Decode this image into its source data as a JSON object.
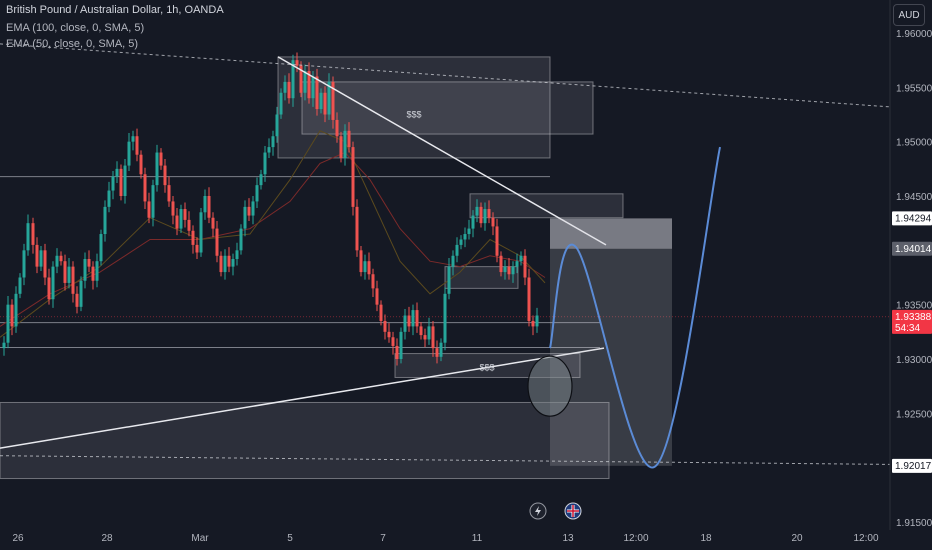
{
  "header": {
    "title": "British Pound / Australian Dollar, 1h, OANDA",
    "indicator_1": "EMA (100, close, 0, SMA, 5)",
    "indicator_2": "EMA (50, close, 0, SMA, 5)"
  },
  "currency_button": "AUD",
  "colors": {
    "background": "#151924",
    "up_candle": "#26a69a",
    "down_candle": "#ef5350",
    "ema_100": "#7b2a2a",
    "ema_50": "#5b4a1e",
    "projection": "#5b8bd6",
    "current_price": "#f23645"
  },
  "chart_data": {
    "type": "candlestick",
    "instrument": "British Pound / Australian Dollar",
    "timeframe": "1h",
    "ylim": [
      1.915,
      1.961
    ],
    "y_ticks": [
      "1.96000",
      "1.95500",
      "1.95000",
      "1.94500",
      "1.94000",
      "1.93500",
      "1.93000",
      "1.92500",
      "1.92000",
      "1.91500"
    ],
    "x_ticks": [
      "26",
      "28",
      "Mar",
      "5",
      "7",
      "11",
      "13",
      "12:00",
      "18",
      "20",
      "12:00"
    ],
    "price_labels": [
      {
        "value": "1.94294",
        "price": 1.94294,
        "style": "white"
      },
      {
        "value": "1.94014",
        "price": 1.94014,
        "style": "gray"
      },
      {
        "value": "1.93388",
        "price": 1.93388,
        "style": "red"
      },
      {
        "value": "1.92017",
        "price": 1.92017,
        "style": "white"
      }
    ],
    "countdown": "54:34",
    "annotations": [
      {
        "text": "$$$",
        "position": "inside upper supply zone near 1.9515"
      },
      {
        "text": "$$$",
        "position": "inside lower zone near 1.9290"
      }
    ],
    "path_points": [
      [
        0,
        1.931
      ],
      [
        4,
        1.9315
      ],
      [
        8,
        1.935
      ],
      [
        12,
        1.933
      ],
      [
        16,
        1.936
      ],
      [
        20,
        1.9375
      ],
      [
        24,
        1.94
      ],
      [
        28,
        1.9425
      ],
      [
        33,
        1.9405
      ],
      [
        37,
        1.9385
      ],
      [
        41,
        1.94
      ],
      [
        45,
        1.9375
      ],
      [
        49,
        1.9355
      ],
      [
        53,
        1.9385
      ],
      [
        57,
        1.9395
      ],
      [
        61,
        1.939
      ],
      [
        65,
        1.937
      ],
      [
        69,
        1.9385
      ],
      [
        73,
        1.936
      ],
      [
        77,
        1.9348
      ],
      [
        81,
        1.9372
      ],
      [
        85,
        1.9392
      ],
      [
        89,
        1.9385
      ],
      [
        93,
        1.9372
      ],
      [
        97,
        1.939
      ],
      [
        101,
        1.9415
      ],
      [
        105,
        1.944
      ],
      [
        109,
        1.9455
      ],
      [
        113,
        1.9468
      ],
      [
        117,
        1.9475
      ],
      [
        121,
        1.945
      ],
      [
        125,
        1.9478
      ],
      [
        129,
        1.95
      ],
      [
        133,
        1.9505
      ],
      [
        137,
        1.9488
      ],
      [
        141,
        1.947
      ],
      [
        145,
        1.9445
      ],
      [
        149,
        1.943
      ],
      [
        153,
        1.946
      ],
      [
        157,
        1.949
      ],
      [
        161,
        1.9478
      ],
      [
        165,
        1.946
      ],
      [
        169,
        1.9445
      ],
      [
        173,
        1.9432
      ],
      [
        177,
        1.942
      ],
      [
        181,
        1.9438
      ],
      [
        185,
        1.9428
      ],
      [
        189,
        1.9418
      ],
      [
        193,
        1.9405
      ],
      [
        197,
        1.9398
      ],
      [
        201,
        1.9435
      ],
      [
        205,
        1.945
      ],
      [
        209,
        1.943
      ],
      [
        213,
        1.942
      ],
      [
        217,
        1.9395
      ],
      [
        221,
        1.938
      ],
      [
        225,
        1.9395
      ],
      [
        229,
        1.9385
      ],
      [
        233,
        1.9392
      ],
      [
        237,
        1.94
      ],
      [
        241,
        1.942
      ],
      [
        245,
        1.944
      ],
      [
        249,
        1.9432
      ],
      [
        253,
        1.9445
      ],
      [
        257,
        1.946
      ],
      [
        261,
        1.947
      ],
      [
        265,
        1.949
      ],
      [
        269,
        1.9495
      ],
      [
        273,
        1.9505
      ],
      [
        277,
        1.9525
      ],
      [
        281,
        1.9545
      ],
      [
        285,
        1.9555
      ],
      [
        289,
        1.954
      ],
      [
        293,
        1.9575
      ],
      [
        297,
        1.957
      ],
      [
        301,
        1.9545
      ],
      [
        305,
        1.9565
      ],
      [
        309,
        1.954
      ],
      [
        313,
        1.956
      ],
      [
        317,
        1.953
      ],
      [
        321,
        1.9545
      ],
      [
        325,
        1.9525
      ],
      [
        329,
        1.9555
      ],
      [
        333,
        1.952
      ],
      [
        337,
        1.9505
      ],
      [
        341,
        1.9485
      ],
      [
        345,
        1.951
      ],
      [
        349,
        1.9495
      ],
      [
        353,
        1.944
      ],
      [
        357,
        1.94
      ],
      [
        361,
        1.938
      ],
      [
        365,
        1.939
      ],
      [
        369,
        1.9378
      ],
      [
        373,
        1.9365
      ],
      [
        377,
        1.935
      ],
      [
        381,
        1.9335
      ],
      [
        385,
        1.9325
      ],
      [
        389,
        1.932
      ],
      [
        393,
        1.9312
      ],
      [
        397,
        1.93
      ],
      [
        401,
        1.9325
      ],
      [
        405,
        1.934
      ],
      [
        409,
        1.933
      ],
      [
        413,
        1.9345
      ],
      [
        417,
        1.933
      ],
      [
        421,
        1.9322
      ],
      [
        425,
        1.9318
      ],
      [
        429,
        1.933
      ],
      [
        433,
        1.931
      ],
      [
        437,
        1.9302
      ],
      [
        441,
        1.9315
      ],
      [
        445,
        1.936
      ],
      [
        449,
        1.9385
      ],
      [
        453,
        1.9395
      ],
      [
        457,
        1.9405
      ],
      [
        461,
        1.941
      ],
      [
        465,
        1.9415
      ],
      [
        469,
        1.942
      ],
      [
        473,
        1.9432
      ],
      [
        477,
        1.944
      ],
      [
        481,
        1.9425
      ],
      [
        485,
        1.9438
      ],
      [
        489,
        1.943
      ],
      [
        493,
        1.9422
      ],
      [
        497,
        1.9395
      ],
      [
        501,
        1.938
      ],
      [
        505,
        1.9385
      ],
      [
        509,
        1.9378
      ],
      [
        513,
        1.9385
      ],
      [
        517,
        1.939
      ],
      [
        521,
        1.9395
      ],
      [
        525,
        1.9375
      ],
      [
        529,
        1.9335
      ],
      [
        533,
        1.933
      ],
      [
        537,
        1.934
      ]
    ],
    "ema_100": [
      [
        0,
        1.933
      ],
      [
        50,
        1.936
      ],
      [
        100,
        1.938
      ],
      [
        150,
        1.941
      ],
      [
        200,
        1.941
      ],
      [
        250,
        1.942
      ],
      [
        290,
        1.9445
      ],
      [
        320,
        1.948
      ],
      [
        345,
        1.949
      ],
      [
        370,
        1.9465
      ],
      [
        400,
        1.942
      ],
      [
        430,
        1.939
      ],
      [
        460,
        1.9385
      ],
      [
        490,
        1.9395
      ],
      [
        520,
        1.939
      ],
      [
        545,
        1.9375
      ]
    ],
    "ema_50": [
      [
        0,
        1.932
      ],
      [
        50,
        1.9355
      ],
      [
        100,
        1.9385
      ],
      [
        150,
        1.943
      ],
      [
        200,
        1.941
      ],
      [
        250,
        1.9415
      ],
      [
        290,
        1.9465
      ],
      [
        320,
        1.951
      ],
      [
        345,
        1.95
      ],
      [
        370,
        1.945
      ],
      [
        400,
        1.939
      ],
      [
        430,
        1.936
      ],
      [
        460,
        1.938
      ],
      [
        490,
        1.941
      ],
      [
        520,
        1.9395
      ],
      [
        545,
        1.937
      ]
    ],
    "horizontal_lines": [
      1.94678,
      1.93335,
      1.93106
    ],
    "trendlines": [
      {
        "name": "upper-dashed-trendline",
        "style": "dashed",
        "from": [
          0,
          1.959
        ],
        "to": [
          890,
          1.9532
        ]
      },
      {
        "name": "descending-trendline",
        "style": "solid",
        "from": [
          278,
          1.9578
        ],
        "to": [
          606,
          1.9405
        ]
      },
      {
        "name": "ascending-trendline",
        "style": "solid",
        "from": [
          0,
          1.9218
        ],
        "to": [
          604,
          1.931
        ]
      }
    ],
    "dashed_target_line": {
      "from": [
        0,
        1.9211
      ],
      "to": [
        890,
        1.9203
      ]
    },
    "zones": [
      {
        "name": "upper-supply-zone",
        "x": [
          278,
          550
        ],
        "y": [
          1.9485,
          1.9578
        ]
      },
      {
        "name": "upper-liquidity-zone",
        "x": [
          302,
          593
        ],
        "y": [
          1.9507,
          1.9555
        ]
      },
      {
        "name": "mid-supply-zone",
        "x": [
          470,
          623
        ],
        "y": [
          1.943,
          1.9452
        ]
      },
      {
        "name": "small-demand-zone",
        "x": [
          445,
          518
        ],
        "y": [
          1.9365,
          1.9385
        ]
      },
      {
        "name": "lower-liquidity-zone",
        "x": [
          395,
          580
        ],
        "y": [
          1.9283,
          1.9305
        ]
      },
      {
        "name": "large-demand-zone",
        "x": [
          0,
          609
        ],
        "y": [
          1.919,
          1.926
        ]
      }
    ],
    "position_tool": {
      "x": [
        550,
        672
      ],
      "entry": 1.94014,
      "stop": 1.94294,
      "target": 1.92017
    },
    "highlight_circle": {
      "x": 550,
      "y": 1.9275
    },
    "projection_path": [
      [
        550,
        1.931
      ],
      [
        576,
        1.9403
      ],
      [
        655,
        1.9201
      ],
      [
        720,
        1.9495
      ]
    ]
  }
}
